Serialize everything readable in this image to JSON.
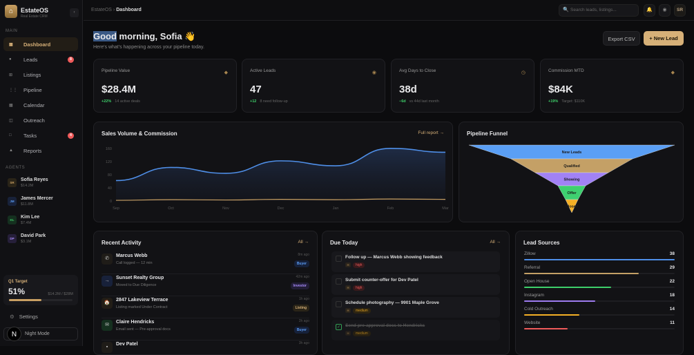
{
  "app": {
    "name": "EstateOS",
    "subtitle": "Real Estate CRM",
    "logo_icon": "house-icon"
  },
  "sidebar": {
    "main_label": "MAIN",
    "items": [
      {
        "label": "Dashboard",
        "icon": "▦",
        "active": true
      },
      {
        "label": "Leads",
        "icon": "●",
        "badge": "8"
      },
      {
        "label": "Listings",
        "icon": "⊞"
      },
      {
        "label": "Pipeline",
        "icon": "⋮⋮"
      },
      {
        "label": "Calendar",
        "icon": "▦"
      },
      {
        "label": "Outreach",
        "icon": "◫"
      },
      {
        "label": "Tasks",
        "icon": "□",
        "badge": "4"
      },
      {
        "label": "Reports",
        "icon": "▲"
      }
    ],
    "agents_label": "AGENTS",
    "agents": [
      {
        "initials": "SR",
        "name": "Sofia Reyes",
        "value": "$14.2M",
        "color": "#c9a063",
        "bg": "#2a2418"
      },
      {
        "initials": "JM",
        "name": "James Mercer",
        "value": "$11.8M",
        "color": "#5b9cf5",
        "bg": "#18223a"
      },
      {
        "initials": "KL",
        "name": "Kim Lee",
        "value": "$7.4M",
        "color": "#3ecf6a",
        "bg": "#15301f"
      },
      {
        "initials": "DP",
        "name": "David Park",
        "value": "$3.1M",
        "color": "#a78bfa",
        "bg": "#261f3a"
      }
    ],
    "q1": {
      "label": "Q1 Target",
      "percent": "51%",
      "progress": 51,
      "value": "$14.2M / $28M"
    },
    "settings": "Settings",
    "night_mode": "Night Mode",
    "dev_badge": "N"
  },
  "topbar": {
    "breadcrumb_root": "EstateOS",
    "breadcrumb_sep": "›",
    "breadcrumb_current": "Dashboard",
    "search_placeholder": "Search leads, listings...",
    "user_initials": "SR"
  },
  "header": {
    "greeting_highlight": "Good",
    "greeting_rest": " morning, Sofia 👋",
    "subtitle": "Here's what's happening across your pipeline today.",
    "export_label": "Export CSV",
    "new_lead_label": "+ New Lead"
  },
  "kpis": [
    {
      "label": "Pipeline Value",
      "value": "$28.4M",
      "delta": "+22%",
      "note": "14 active deals",
      "icon": "◆"
    },
    {
      "label": "Active Leads",
      "value": "47",
      "delta": "+12",
      "note": "8 need follow-up",
      "icon": "◉"
    },
    {
      "label": "Avg Days to Close",
      "value": "38d",
      "delta": "−6d",
      "note": "vs 44d last month",
      "icon": "◷"
    },
    {
      "label": "Commission MTD",
      "value": "$84K",
      "delta": "+19%",
      "note": "Target: $110K",
      "icon": "◆"
    }
  ],
  "chart_data": [
    {
      "type": "area",
      "title": "Sales Volume & Commission",
      "link": "Full report →",
      "categories": [
        "Sep",
        "Oct",
        "Nov",
        "Dec",
        "Jan",
        "Feb",
        "Mar"
      ],
      "yticks": [
        "0",
        "40",
        "80",
        "120",
        "160"
      ],
      "ylim": [
        0,
        170
      ],
      "series": [
        {
          "name": "Sales Volume",
          "color": "#4f8fe8",
          "values": [
            62,
            102,
            84,
            122,
            107,
            160,
            148
          ]
        },
        {
          "name": "Commission",
          "color": "#c9a063",
          "values": [
            2,
            4,
            3,
            5,
            4,
            6,
            5
          ]
        }
      ]
    },
    {
      "type": "funnel",
      "title": "Pipeline Funnel",
      "stages": [
        {
          "label": "New Leads",
          "color": "#5a9ff5"
        },
        {
          "label": "Qualified",
          "color": "#c4a066"
        },
        {
          "label": "Showing",
          "color": "#a182f5"
        },
        {
          "label": "Offer",
          "color": "#3ed070"
        },
        {
          "label": "Closed",
          "color": "#f5b025"
        }
      ]
    }
  ],
  "activity": {
    "title": "Recent Activity",
    "link": "All →",
    "items": [
      {
        "name": "Marcus Webb",
        "sub": "Call logged — 12 min",
        "time": "8m ago",
        "tag": "Buyer",
        "icon": "✆",
        "tagc": "#5b9cf5",
        "tagbg": "#16213a",
        "ibg": "#1f1c18"
      },
      {
        "name": "Sunset Realty Group",
        "sub": "Moved to Due Diligence",
        "time": "42m ago",
        "tag": "Investor",
        "icon": "→",
        "tagc": "#a78bfa",
        "tagbg": "#221d36",
        "ibg": "#18213a"
      },
      {
        "name": "2847 Lakeview Terrace",
        "sub": "Listing marked Under Contract",
        "time": "1h ago",
        "tag": "Listing",
        "icon": "🏠",
        "tagc": "#d6b078",
        "tagbg": "#2a2418",
        "ibg": "#221d16"
      },
      {
        "name": "Claire Hendricks",
        "sub": "Email sent — Pre-approval docs",
        "time": "2h ago",
        "tag": "Buyer",
        "icon": "✉",
        "tagc": "#5b9cf5",
        "tagbg": "#16213a",
        "ibg": "#15301f"
      },
      {
        "name": "Dev Patel",
        "sub": "",
        "time": "3h ago",
        "tag": "",
        "icon": "▪",
        "tagc": "#5b9cf5",
        "tagbg": "transparent",
        "ibg": "#1f1c18"
      }
    ]
  },
  "due": {
    "title": "Due Today",
    "link": "All →",
    "items": [
      {
        "title": "Follow up — Marcus Webb showing feedback",
        "priority": "high",
        "done": false
      },
      {
        "title": "Submit counter-offer for Dev Patel",
        "priority": "high",
        "done": false
      },
      {
        "title": "Schedule photography — 9901 Maple Grove",
        "priority": "medium",
        "done": false
      },
      {
        "title": "Send pre-approval docs to Hendricks",
        "priority": "medium",
        "done": true
      }
    ]
  },
  "sources": {
    "title": "Lead Sources",
    "max": 38,
    "items": [
      {
        "name": "Zillow",
        "count": 38,
        "color": "#4f8fe8"
      },
      {
        "name": "Referral",
        "count": 29,
        "color": "#c4a066"
      },
      {
        "name": "Open House",
        "count": 22,
        "color": "#3ecf6a"
      },
      {
        "name": "Instagram",
        "count": 18,
        "color": "#9d7cf0"
      },
      {
        "name": "Cold Outreach",
        "count": 14,
        "color": "#f5b025"
      },
      {
        "name": "Website",
        "count": 11,
        "color": "#ef5a5a"
      }
    ]
  }
}
